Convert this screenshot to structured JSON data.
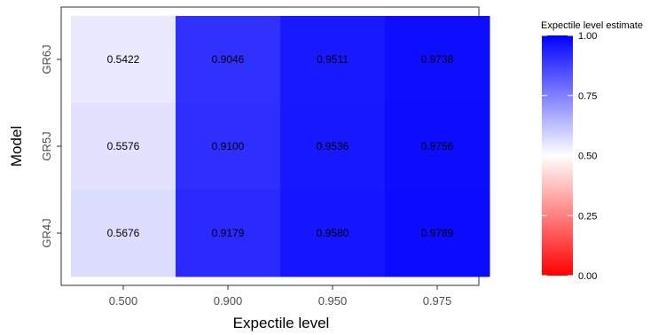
{
  "chart_data": {
    "type": "heatmap",
    "x_categories": [
      "0.500",
      "0.900",
      "0.950",
      "0.975"
    ],
    "y_categories": [
      "GR6J",
      "GR5J",
      "GR4J"
    ],
    "values": [
      [
        0.5422,
        0.9046,
        0.9511,
        0.9738
      ],
      [
        0.5576,
        0.91,
        0.9536,
        0.9756
      ],
      [
        0.5676,
        0.9179,
        0.958,
        0.9789
      ]
    ],
    "cell_labels": [
      [
        "0.5422",
        "0.9046",
        "0.9511",
        "0.9738"
      ],
      [
        "0.5576",
        "0.9100",
        "0.9536",
        "0.9756"
      ],
      [
        "0.5676",
        "0.9179",
        "0.9580",
        "0.9789"
      ]
    ],
    "xlabel": "Expectile level",
    "ylabel": "Model",
    "legend": {
      "title": "Expectile level estimate",
      "position": "right",
      "range": [
        0.0,
        1.0
      ],
      "midpoint": 0.5,
      "low_color": "#ff0000",
      "mid_color": "#ffffff",
      "high_color": "#0000ff",
      "ticks": [
        1.0,
        0.75,
        0.5,
        0.25,
        0.0
      ],
      "tick_labels": [
        "1.00",
        "0.75",
        "0.50",
        "0.25",
        "0.00"
      ]
    },
    "grid": false
  }
}
